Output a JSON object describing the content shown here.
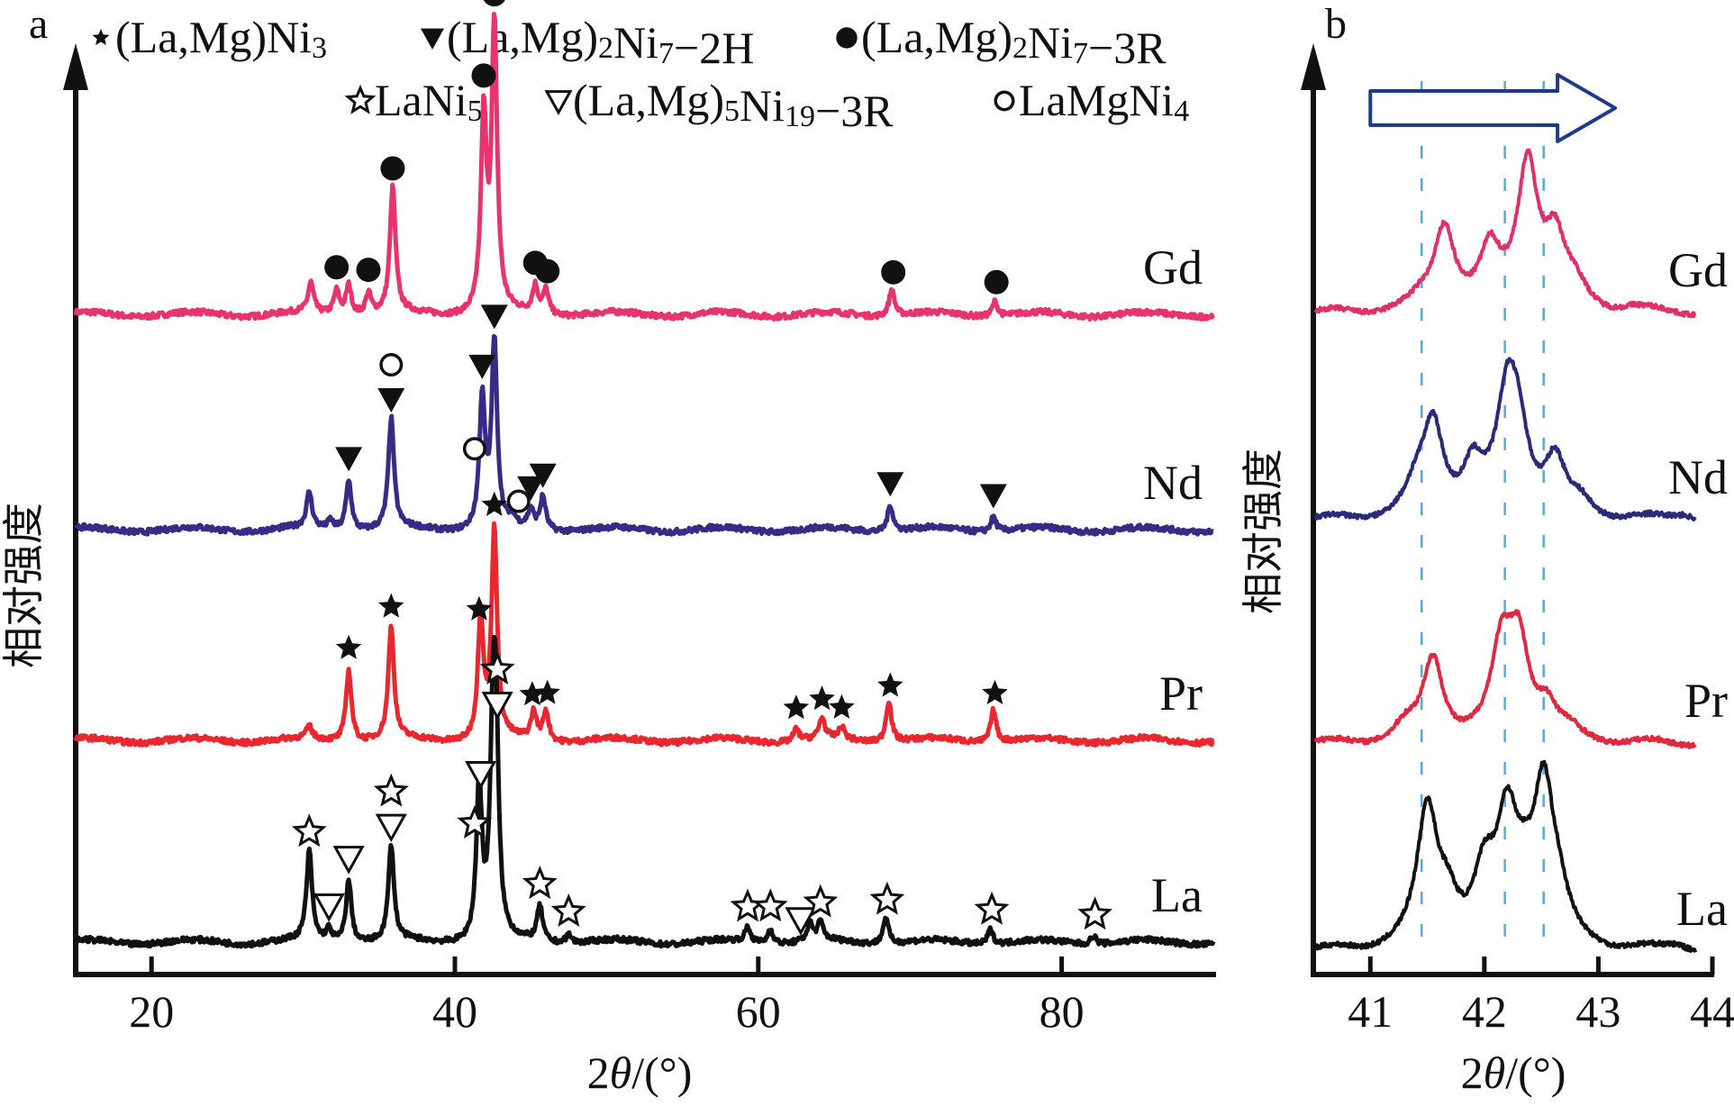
{
  "chart_data": [
    {
      "panel": "a",
      "type": "line",
      "title": "",
      "xlabel": "2θ/(°)",
      "ylabel": "相对强度",
      "xlim": [
        15,
        90
      ],
      "xticks": [
        20,
        40,
        60,
        80
      ],
      "grid": false,
      "legend_position": "top",
      "legend": [
        {
          "marker": "filled-star",
          "label": "(La,Mg)Ni3",
          "parts": [
            [
              "(La,Mg)Ni",
              ""
            ],
            [
              "3",
              "sub"
            ]
          ]
        },
        {
          "marker": "filled-down-triangle",
          "label": "(La,Mg)2Ni7−2H",
          "parts": [
            [
              "(La,Mg)",
              ""
            ],
            [
              "2",
              "sub"
            ],
            [
              "Ni",
              ""
            ],
            [
              "7",
              "sub"
            ],
            [
              "−2H",
              ""
            ]
          ]
        },
        {
          "marker": "filled-circle",
          "label": "(La,Mg)2Ni7−3R",
          "parts": [
            [
              "(La,Mg)",
              ""
            ],
            [
              "2",
              "sub"
            ],
            [
              "Ni",
              ""
            ],
            [
              "7",
              "sub"
            ],
            [
              "−3R",
              ""
            ]
          ]
        },
        {
          "marker": "open-star",
          "label": "LaNi5",
          "parts": [
            [
              "LaNi",
              ""
            ],
            [
              "5",
              "sub"
            ]
          ]
        },
        {
          "marker": "open-down-triangle",
          "label": "(La,Mg)5Ni19−3R",
          "parts": [
            [
              "(La,Mg)",
              ""
            ],
            [
              "5",
              "sub"
            ],
            [
              "Ni",
              ""
            ],
            [
              "19",
              "sub"
            ],
            [
              "−3R",
              ""
            ]
          ]
        },
        {
          "marker": "open-circle",
          "label": "LaMgNi4",
          "parts": [
            [
              "LaMgNi",
              ""
            ],
            [
              "4",
              "sub"
            ]
          ]
        }
      ],
      "series": [
        {
          "name": "Gd",
          "color": "#e8336d",
          "offset": 3,
          "peaks": [
            [
              30.5,
              0.1
            ],
            [
              32.2,
              0.08
            ],
            [
              33.0,
              0.1
            ],
            [
              34.3,
              0.07
            ],
            [
              35.9,
              0.42
            ],
            [
              41.9,
              0.65
            ],
            [
              42.6,
              0.95
            ],
            [
              45.3,
              0.09
            ],
            [
              46.0,
              0.08
            ],
            [
              68.8,
              0.09
            ],
            [
              75.6,
              0.05
            ]
          ],
          "markers": [
            {
              "x": 32.2,
              "type": "filled-circle",
              "stack": 0
            },
            {
              "x": 34.3,
              "type": "filled-circle",
              "stack": 0
            },
            {
              "x": 35.9,
              "type": "filled-circle",
              "stack": 0
            },
            {
              "x": 41.9,
              "type": "filled-circle",
              "stack": 0
            },
            {
              "x": 42.6,
              "type": "filled-circle",
              "stack": 0
            },
            {
              "x": 45.3,
              "type": "filled-circle",
              "stack": 0
            },
            {
              "x": 46.1,
              "type": "filled-circle",
              "stack": 0
            },
            {
              "x": 68.9,
              "type": "filled-circle",
              "stack": 0
            },
            {
              "x": 75.7,
              "type": "filled-circle",
              "stack": 0
            }
          ]
        },
        {
          "name": "Nd",
          "color": "#3a2a86",
          "offset": 2,
          "peaks": [
            [
              30.4,
              0.12
            ],
            [
              31.8,
              0.03
            ],
            [
              33.0,
              0.17
            ],
            [
              35.8,
              0.37
            ],
            [
              41.8,
              0.44
            ],
            [
              42.6,
              0.62
            ],
            [
              43.8,
              0.03
            ],
            [
              45.0,
              0.06
            ],
            [
              45.8,
              0.11
            ],
            [
              68.7,
              0.09
            ],
            [
              75.5,
              0.05
            ]
          ],
          "markers": [
            {
              "x": 33.0,
              "type": "filled-down-triangle",
              "stack": 0
            },
            {
              "x": 35.8,
              "type": "filled-down-triangle",
              "stack": 0
            },
            {
              "x": 35.8,
              "type": "open-circle",
              "stack": 1
            },
            {
              "x": 41.8,
              "type": "filled-down-triangle",
              "stack": 0
            },
            {
              "x": 41.3,
              "type": "open-circle",
              "stack": 1
            },
            {
              "x": 42.6,
              "type": "filled-down-triangle",
              "stack": 0
            },
            {
              "x": 44.2,
              "type": "open-circle",
              "stack": 0
            },
            {
              "x": 45.0,
              "type": "filled-down-triangle",
              "stack": 0
            },
            {
              "x": 45.8,
              "type": "filled-down-triangle",
              "stack": 0
            },
            {
              "x": 68.7,
              "type": "filled-down-triangle",
              "stack": 0
            },
            {
              "x": 75.5,
              "type": "filled-down-triangle",
              "stack": 0
            }
          ]
        },
        {
          "name": "Pr",
          "color": "#e8282e",
          "offset": 1,
          "peaks": [
            [
              30.4,
              0.04
            ],
            [
              33.0,
              0.24
            ],
            [
              35.8,
              0.38
            ],
            [
              41.7,
              0.41
            ],
            [
              42.6,
              0.7
            ],
            [
              45.2,
              0.09
            ],
            [
              46.0,
              0.1
            ],
            [
              62.5,
              0.04
            ],
            [
              64.2,
              0.07
            ],
            [
              65.5,
              0.04
            ],
            [
              68.6,
              0.14
            ],
            [
              75.5,
              0.11
            ]
          ],
          "markers": [
            {
              "x": 33.0,
              "type": "filled-star",
              "stack": 0
            },
            {
              "x": 35.8,
              "type": "filled-star",
              "stack": 0
            },
            {
              "x": 41.6,
              "type": "filled-star",
              "stack": 0
            },
            {
              "x": 42.6,
              "type": "filled-star",
              "stack": 0
            },
            {
              "x": 45.1,
              "type": "filled-star",
              "stack": 0
            },
            {
              "x": 46.1,
              "type": "filled-star",
              "stack": 0
            },
            {
              "x": 62.5,
              "type": "filled-star",
              "stack": 0
            },
            {
              "x": 64.2,
              "type": "filled-star",
              "stack": 0
            },
            {
              "x": 65.5,
              "type": "filled-star",
              "stack": 0
            },
            {
              "x": 68.7,
              "type": "filled-star",
              "stack": 0
            },
            {
              "x": 75.6,
              "type": "filled-star",
              "stack": 0
            }
          ]
        },
        {
          "name": "La",
          "color": "#111111",
          "offset": 0,
          "peaks": [
            [
              30.4,
              0.3
            ],
            [
              31.7,
              0.04
            ],
            [
              33.0,
              0.21
            ],
            [
              35.8,
              0.32
            ],
            [
              41.6,
              0.52
            ],
            [
              42.5,
              0.58
            ],
            [
              42.7,
              0.62
            ],
            [
              45.6,
              0.12
            ],
            [
              47.5,
              0.03
            ],
            [
              59.3,
              0.05
            ],
            [
              60.8,
              0.05
            ],
            [
              63.4,
              0.06
            ],
            [
              64.1,
              0.06
            ],
            [
              68.4,
              0.09
            ],
            [
              75.3,
              0.05
            ],
            [
              82.1,
              0.03
            ]
          ],
          "markers": [
            {
              "x": 30.4,
              "type": "open-star",
              "stack": 0
            },
            {
              "x": 31.7,
              "type": "open-down-triangle",
              "stack": 0
            },
            {
              "x": 33.0,
              "type": "open-down-triangle",
              "stack": 0
            },
            {
              "x": 35.8,
              "type": "open-down-triangle",
              "stack": 0
            },
            {
              "x": 35.8,
              "type": "open-star",
              "stack": 1
            },
            {
              "x": 41.7,
              "type": "open-down-triangle",
              "stack": 0
            },
            {
              "x": 41.3,
              "type": "open-star",
              "stack": 1
            },
            {
              "x": 42.8,
              "type": "open-down-triangle",
              "stack": 0
            },
            {
              "x": 42.8,
              "type": "open-star",
              "stack": 1
            },
            {
              "x": 45.6,
              "type": "open-star",
              "stack": 0
            },
            {
              "x": 47.5,
              "type": "open-star",
              "stack": 0
            },
            {
              "x": 59.3,
              "type": "open-star",
              "stack": 0
            },
            {
              "x": 60.8,
              "type": "open-star",
              "stack": 0
            },
            {
              "x": 62.8,
              "type": "open-down-triangle",
              "stack": 0
            },
            {
              "x": 64.1,
              "type": "open-star",
              "stack": 0
            },
            {
              "x": 68.5,
              "type": "open-star",
              "stack": 0
            },
            {
              "x": 75.4,
              "type": "open-star",
              "stack": 0
            },
            {
              "x": 82.2,
              "type": "open-star",
              "stack": 0
            }
          ]
        }
      ]
    },
    {
      "panel": "b",
      "type": "line",
      "title": "",
      "xlabel": "2θ/(°)",
      "ylabel": "相对强度",
      "xlim": [
        40.5,
        44
      ],
      "xticks": [
        41,
        42,
        43,
        44
      ],
      "grid": false,
      "reference_lines": [
        41.45,
        42.18,
        42.52
      ],
      "reference_line_color": "#5aa8d8",
      "shift_arrow": {
        "direction": "right",
        "from": 41.0,
        "to": 43.1,
        "color": "#1f3a8a"
      },
      "series": [
        {
          "name": "Gd",
          "color": "#e0306a",
          "offset": 3,
          "peaks": [
            [
              41.45,
              0.05
            ],
            [
              41.65,
              0.55
            ],
            [
              42.05,
              0.35
            ],
            [
              42.38,
              0.95
            ],
            [
              42.62,
              0.42
            ],
            [
              42.8,
              0.12
            ],
            [
              43.3,
              0.02
            ]
          ]
        },
        {
          "name": "Nd",
          "color": "#2a2a78",
          "offset": 2,
          "peaks": [
            [
              41.4,
              0.15
            ],
            [
              41.55,
              0.6
            ],
            [
              41.9,
              0.3
            ],
            [
              42.2,
              0.7
            ],
            [
              42.3,
              0.45
            ],
            [
              42.62,
              0.35
            ],
            [
              42.85,
              0.08
            ],
            [
              43.75,
              0.04
            ]
          ]
        },
        {
          "name": "Pr",
          "color": "#e02840",
          "offset": 1,
          "peaks": [
            [
              41.3,
              0.08
            ],
            [
              41.55,
              0.54
            ],
            [
              42.15,
              0.55
            ],
            [
              42.3,
              0.62
            ],
            [
              42.55,
              0.2
            ],
            [
              42.75,
              0.05
            ]
          ]
        },
        {
          "name": "La",
          "color": "#111111",
          "offset": 0,
          "peaks": [
            [
              41.5,
              0.88
            ],
            [
              41.68,
              0.25
            ],
            [
              42.0,
              0.4
            ],
            [
              42.2,
              0.75
            ],
            [
              42.35,
              0.25
            ],
            [
              42.52,
              0.98
            ],
            [
              42.65,
              0.2
            ],
            [
              43.7,
              0.04
            ]
          ]
        }
      ]
    }
  ],
  "labels": {
    "panel_a": "a",
    "panel_b": "b",
    "series_names": [
      "Gd",
      "Nd",
      "Pr",
      "La"
    ]
  }
}
